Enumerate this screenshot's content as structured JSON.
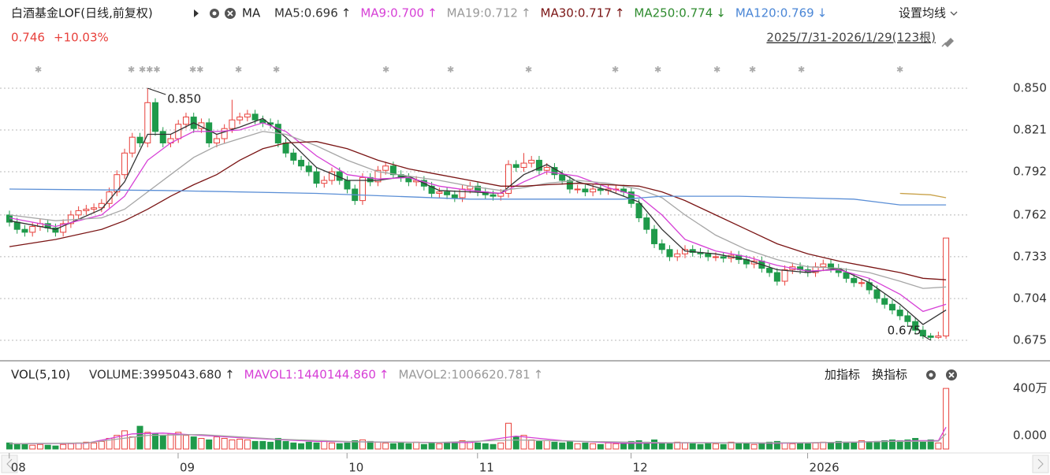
{
  "header": {
    "title": "白酒基金LOF(日线,前复权)",
    "ma_label": "MA",
    "indicators": [
      {
        "text": "MA5:0.696",
        "arrow": "↑",
        "color": "#333333"
      },
      {
        "text": "MA9:0.700",
        "arrow": "↑",
        "color": "#d63fd6"
      },
      {
        "text": "MA19:0.712",
        "arrow": "↑",
        "color": "#999999"
      },
      {
        "text": "MA30:0.717",
        "arrow": "↑",
        "color": "#7a1414"
      },
      {
        "text": "MA250:0.774",
        "arrow": "↓",
        "color": "#2e8b2e"
      },
      {
        "text": "MA120:0.769",
        "arrow": "↓",
        "color": "#4a86d6"
      }
    ],
    "settings": "设置均线",
    "price": "0.746",
    "change": "+10.03%",
    "range": "2025/7/31-2026/1/29(123根)"
  },
  "volume_header": {
    "title": "VOL(5,10)",
    "indicators": [
      {
        "text": "VOLUME:3995043.680",
        "arrow": "↑",
        "color": "#333333"
      },
      {
        "text": "MAVOL1:1440144.860",
        "arrow": "↑",
        "color": "#d63fd6"
      },
      {
        "text": "MAVOL2:1006620.781",
        "arrow": "↑",
        "color": "#999999"
      }
    ],
    "add": "加指标",
    "switch": "换指标"
  },
  "chart_data": [
    {
      "type": "candlestick",
      "up_color": "#e8413c",
      "down_color": "#1f9a4a",
      "xlim": [
        -1.23,
        125.07
      ],
      "ylim": [
        0.6624,
        0.8593
      ],
      "yticks": [
        {
          "value": 0.85,
          "label": "0.850"
        },
        {
          "value": 0.821,
          "label": "0.821"
        },
        {
          "value": 0.792,
          "label": "0.792"
        },
        {
          "value": 0.762,
          "label": "0.762"
        },
        {
          "value": 0.733,
          "label": "0.733"
        },
        {
          "value": 0.704,
          "label": "0.704"
        },
        {
          "value": 0.675,
          "label": "0.675"
        }
      ],
      "grid": true,
      "open": [
        0.762,
        0.757,
        0.752,
        0.75,
        0.754,
        0.756,
        0.753,
        0.75,
        0.756,
        0.762,
        0.765,
        0.766,
        0.767,
        0.77,
        0.778,
        0.79,
        0.805,
        0.816,
        0.812,
        0.84,
        0.82,
        0.812,
        0.815,
        0.825,
        0.83,
        0.822,
        0.826,
        0.812,
        0.815,
        0.822,
        0.828,
        0.83,
        0.832,
        0.828,
        0.826,
        0.825,
        0.812,
        0.805,
        0.8,
        0.796,
        0.792,
        0.784,
        0.786,
        0.792,
        0.786,
        0.78,
        0.772,
        0.788,
        0.785,
        0.793,
        0.796,
        0.79,
        0.788,
        0.785,
        0.786,
        0.782,
        0.777,
        0.778,
        0.776,
        0.774,
        0.78,
        0.782,
        0.778,
        0.776,
        0.775,
        0.777,
        0.797,
        0.795,
        0.798,
        0.8,
        0.793,
        0.795,
        0.79,
        0.786,
        0.78,
        0.78,
        0.778,
        0.78,
        0.779,
        0.78,
        0.78,
        0.778,
        0.77,
        0.76,
        0.752,
        0.742,
        0.738,
        0.733,
        0.735,
        0.738,
        0.736,
        0.735,
        0.733,
        0.733,
        0.732,
        0.734,
        0.731,
        0.728,
        0.73,
        0.725,
        0.722,
        0.716,
        0.724,
        0.726,
        0.724,
        0.722,
        0.726,
        0.728,
        0.725,
        0.722,
        0.718,
        0.715,
        0.715,
        0.71,
        0.704,
        0.7,
        0.696,
        0.692,
        0.688,
        0.682,
        0.678,
        0.677,
        0.678
      ],
      "high": [
        0.765,
        0.76,
        0.755,
        0.757,
        0.759,
        0.759,
        0.756,
        0.759,
        0.765,
        0.768,
        0.769,
        0.77,
        0.773,
        0.781,
        0.793,
        0.808,
        0.819,
        0.819,
        0.85,
        0.843,
        0.823,
        0.818,
        0.828,
        0.833,
        0.833,
        0.829,
        0.829,
        0.818,
        0.825,
        0.842,
        0.833,
        0.835,
        0.835,
        0.831,
        0.829,
        0.828,
        0.815,
        0.808,
        0.803,
        0.799,
        0.795,
        0.789,
        0.795,
        0.795,
        0.789,
        0.783,
        0.791,
        0.791,
        0.796,
        0.799,
        0.799,
        0.793,
        0.791,
        0.789,
        0.789,
        0.785,
        0.781,
        0.781,
        0.779,
        0.783,
        0.785,
        0.785,
        0.781,
        0.779,
        0.78,
        0.8,
        0.8,
        0.805,
        0.803,
        0.803,
        0.798,
        0.798,
        0.793,
        0.789,
        0.783,
        0.783,
        0.783,
        0.783,
        0.783,
        0.783,
        0.783,
        0.781,
        0.773,
        0.763,
        0.755,
        0.745,
        0.741,
        0.738,
        0.741,
        0.741,
        0.739,
        0.738,
        0.736,
        0.736,
        0.737,
        0.737,
        0.734,
        0.733,
        0.733,
        0.728,
        0.725,
        0.727,
        0.729,
        0.729,
        0.727,
        0.729,
        0.731,
        0.731,
        0.728,
        0.725,
        0.721,
        0.718,
        0.718,
        0.713,
        0.707,
        0.703,
        0.699,
        0.695,
        0.691,
        0.685,
        0.68,
        0.681,
        0.746
      ],
      "low": [
        0.754,
        0.749,
        0.747,
        0.747,
        0.751,
        0.75,
        0.747,
        0.747,
        0.753,
        0.759,
        0.762,
        0.763,
        0.764,
        0.767,
        0.775,
        0.787,
        0.802,
        0.809,
        0.809,
        0.817,
        0.809,
        0.809,
        0.812,
        0.822,
        0.819,
        0.819,
        0.809,
        0.809,
        0.812,
        0.819,
        0.825,
        0.827,
        0.825,
        0.823,
        0.822,
        0.809,
        0.802,
        0.797,
        0.793,
        0.789,
        0.781,
        0.781,
        0.783,
        0.783,
        0.777,
        0.769,
        0.769,
        0.782,
        0.782,
        0.79,
        0.787,
        0.785,
        0.782,
        0.782,
        0.779,
        0.774,
        0.774,
        0.773,
        0.771,
        0.771,
        0.777,
        0.775,
        0.773,
        0.772,
        0.772,
        0.774,
        0.792,
        0.792,
        0.795,
        0.79,
        0.79,
        0.787,
        0.783,
        0.777,
        0.777,
        0.775,
        0.775,
        0.776,
        0.776,
        0.777,
        0.775,
        0.767,
        0.757,
        0.749,
        0.739,
        0.735,
        0.73,
        0.73,
        0.732,
        0.733,
        0.732,
        0.73,
        0.73,
        0.729,
        0.729,
        0.728,
        0.725,
        0.725,
        0.722,
        0.719,
        0.713,
        0.713,
        0.721,
        0.721,
        0.719,
        0.719,
        0.723,
        0.722,
        0.719,
        0.715,
        0.712,
        0.712,
        0.707,
        0.701,
        0.697,
        0.693,
        0.689,
        0.685,
        0.679,
        0.676,
        0.675,
        0.676,
        0.676
      ],
      "close": [
        0.757,
        0.752,
        0.75,
        0.754,
        0.756,
        0.753,
        0.75,
        0.756,
        0.762,
        0.765,
        0.766,
        0.767,
        0.77,
        0.778,
        0.79,
        0.805,
        0.816,
        0.812,
        0.84,
        0.82,
        0.812,
        0.815,
        0.825,
        0.83,
        0.822,
        0.826,
        0.812,
        0.815,
        0.822,
        0.828,
        0.83,
        0.832,
        0.828,
        0.826,
        0.825,
        0.812,
        0.805,
        0.8,
        0.796,
        0.792,
        0.784,
        0.786,
        0.792,
        0.786,
        0.78,
        0.772,
        0.788,
        0.785,
        0.793,
        0.796,
        0.79,
        0.788,
        0.785,
        0.786,
        0.782,
        0.777,
        0.778,
        0.776,
        0.774,
        0.78,
        0.782,
        0.778,
        0.776,
        0.775,
        0.777,
        0.797,
        0.795,
        0.798,
        0.8,
        0.793,
        0.795,
        0.79,
        0.786,
        0.78,
        0.78,
        0.778,
        0.78,
        0.779,
        0.78,
        0.78,
        0.778,
        0.77,
        0.76,
        0.752,
        0.742,
        0.738,
        0.733,
        0.735,
        0.738,
        0.736,
        0.735,
        0.733,
        0.733,
        0.732,
        0.734,
        0.731,
        0.728,
        0.73,
        0.725,
        0.722,
        0.716,
        0.724,
        0.726,
        0.724,
        0.722,
        0.726,
        0.728,
        0.725,
        0.722,
        0.718,
        0.715,
        0.715,
        0.71,
        0.704,
        0.7,
        0.696,
        0.692,
        0.688,
        0.682,
        0.678,
        0.677,
        0.678,
        0.746
      ],
      "series": [
        {
          "color": "#333333",
          "x": [
            0,
            6,
            12,
            15,
            18,
            21,
            24,
            27,
            30,
            33,
            36,
            40,
            44,
            48,
            52,
            56,
            60,
            64,
            67,
            70,
            74,
            78,
            82,
            85,
            88,
            92,
            96,
            100,
            104,
            108,
            112,
            116,
            119,
            122
          ],
          "values": [
            0.758,
            0.752,
            0.766,
            0.785,
            0.818,
            0.818,
            0.826,
            0.818,
            0.823,
            0.829,
            0.816,
            0.795,
            0.786,
            0.786,
            0.789,
            0.779,
            0.778,
            0.777,
            0.79,
            0.797,
            0.785,
            0.779,
            0.771,
            0.752,
            0.737,
            0.735,
            0.731,
            0.724,
            0.722,
            0.725,
            0.715,
            0.7,
            0.686,
            0.696
          ]
        },
        {
          "color": "#d63fd6",
          "x": [
            0,
            6,
            12,
            15,
            18,
            21,
            24,
            27,
            30,
            33,
            36,
            40,
            44,
            48,
            52,
            56,
            60,
            64,
            67,
            70,
            74,
            78,
            82,
            85,
            88,
            92,
            96,
            100,
            104,
            108,
            112,
            116,
            119,
            122
          ],
          "values": [
            0.76,
            0.754,
            0.762,
            0.775,
            0.8,
            0.812,
            0.82,
            0.82,
            0.821,
            0.826,
            0.82,
            0.803,
            0.79,
            0.787,
            0.788,
            0.782,
            0.779,
            0.777,
            0.785,
            0.792,
            0.789,
            0.781,
            0.775,
            0.762,
            0.745,
            0.737,
            0.733,
            0.727,
            0.723,
            0.724,
            0.718,
            0.707,
            0.695,
            0.7
          ]
        },
        {
          "color": "#a6a6a6",
          "x": [
            0,
            6,
            12,
            15,
            18,
            21,
            24,
            27,
            30,
            33,
            36,
            40,
            44,
            48,
            52,
            56,
            60,
            64,
            67,
            70,
            74,
            78,
            82,
            85,
            88,
            92,
            96,
            100,
            104,
            108,
            112,
            116,
            119,
            122
          ],
          "values": [
            0.762,
            0.758,
            0.76,
            0.766,
            0.778,
            0.79,
            0.802,
            0.81,
            0.815,
            0.82,
            0.818,
            0.81,
            0.8,
            0.792,
            0.789,
            0.786,
            0.782,
            0.779,
            0.781,
            0.784,
            0.786,
            0.784,
            0.78,
            0.774,
            0.762,
            0.748,
            0.738,
            0.731,
            0.726,
            0.725,
            0.722,
            0.716,
            0.711,
            0.712
          ]
        },
        {
          "color": "#7a1414",
          "x": [
            0,
            6,
            12,
            15,
            18,
            21,
            24,
            27,
            30,
            33,
            36,
            40,
            44,
            48,
            52,
            56,
            60,
            64,
            67,
            70,
            74,
            78,
            82,
            85,
            88,
            92,
            96,
            100,
            104,
            108,
            112,
            116,
            119,
            122
          ],
          "values": [
            0.74,
            0.745,
            0.752,
            0.758,
            0.766,
            0.775,
            0.783,
            0.79,
            0.8,
            0.808,
            0.812,
            0.813,
            0.808,
            0.8,
            0.794,
            0.79,
            0.786,
            0.782,
            0.782,
            0.783,
            0.784,
            0.783,
            0.782,
            0.778,
            0.772,
            0.762,
            0.752,
            0.742,
            0.735,
            0.73,
            0.726,
            0.722,
            0.718,
            0.717
          ]
        },
        {
          "color": "#c9a24a",
          "x": [
            116,
            120,
            122
          ],
          "values": [
            0.777,
            0.776,
            0.774
          ]
        },
        {
          "color": "#5b8fd6",
          "x": [
            0,
            20,
            40,
            50,
            60,
            70,
            80,
            85,
            95,
            110,
            116,
            122
          ],
          "values": [
            0.78,
            0.779,
            0.777,
            0.775,
            0.773,
            0.773,
            0.773,
            0.775,
            0.775,
            0.773,
            0.769,
            0.769
          ]
        }
      ],
      "annotations": [
        {
          "label": "0.850",
          "x": 18,
          "value": 0.85
        },
        {
          "label": "0.675",
          "x": 120,
          "value": 0.675
        }
      ]
    },
    {
      "type": "bar",
      "xlim": [
        -1.23,
        125.07
      ],
      "ylim": [
        0,
        400
      ],
      "yticks": [
        {
          "value": 400,
          "label": "400万"
        },
        {
          "value": 0,
          "label": "0.000"
        }
      ],
      "xticks": [
        {
          "value": 1,
          "label": "08"
        },
        {
          "value": 23,
          "label": "09"
        },
        {
          "value": 45,
          "label": "10"
        },
        {
          "value": 62,
          "label": "11"
        },
        {
          "value": 82,
          "label": "12"
        },
        {
          "value": 105,
          "label": "2026"
        }
      ],
      "values": [
        40,
        35,
        30,
        25,
        30,
        25,
        20,
        30,
        35,
        40,
        45,
        40,
        50,
        70,
        90,
        120,
        80,
        150,
        110,
        100,
        90,
        100,
        110,
        90,
        80,
        70,
        60,
        80,
        70,
        60,
        65,
        60,
        50,
        50,
        45,
        70,
        50,
        40,
        35,
        45,
        40,
        55,
        40,
        35,
        40,
        55,
        60,
        50,
        45,
        40,
        35,
        40,
        35,
        45,
        30,
        40,
        35,
        40,
        45,
        55,
        50,
        40,
        35,
        30,
        40,
        170,
        80,
        90,
        60,
        50,
        55,
        45,
        40,
        50,
        35,
        40,
        35,
        30,
        40,
        35,
        40,
        50,
        55,
        45,
        60,
        40,
        35,
        45,
        40,
        35,
        30,
        40,
        35,
        30,
        45,
        40,
        35,
        30,
        40,
        45,
        50,
        40,
        35,
        40,
        35,
        40,
        45,
        40,
        50,
        45,
        40,
        55,
        45,
        50,
        55,
        60,
        55,
        60,
        70,
        45,
        60,
        40,
        399.5
      ],
      "series": [
        {
          "color": "#d63fd6",
          "x": [
            0,
            10,
            16,
            20,
            30,
            40,
            50,
            60,
            66,
            72,
            80,
            90,
            100,
            110,
            118,
            121,
            122
          ],
          "values": [
            35,
            38,
            100,
            105,
            75,
            50,
            45,
            42,
            85,
            55,
            38,
            42,
            38,
            45,
            55,
            55,
            144.014
          ]
        },
        {
          "color": "#a6a6a6",
          "x": [
            0,
            10,
            18,
            25,
            35,
            45,
            55,
            66,
            75,
            85,
            95,
            105,
            115,
            121,
            122
          ],
          "values": [
            35,
            40,
            90,
            95,
            65,
            48,
            42,
            60,
            50,
            42,
            40,
            42,
            50,
            52,
            100.662
          ]
        }
      ]
    }
  ]
}
